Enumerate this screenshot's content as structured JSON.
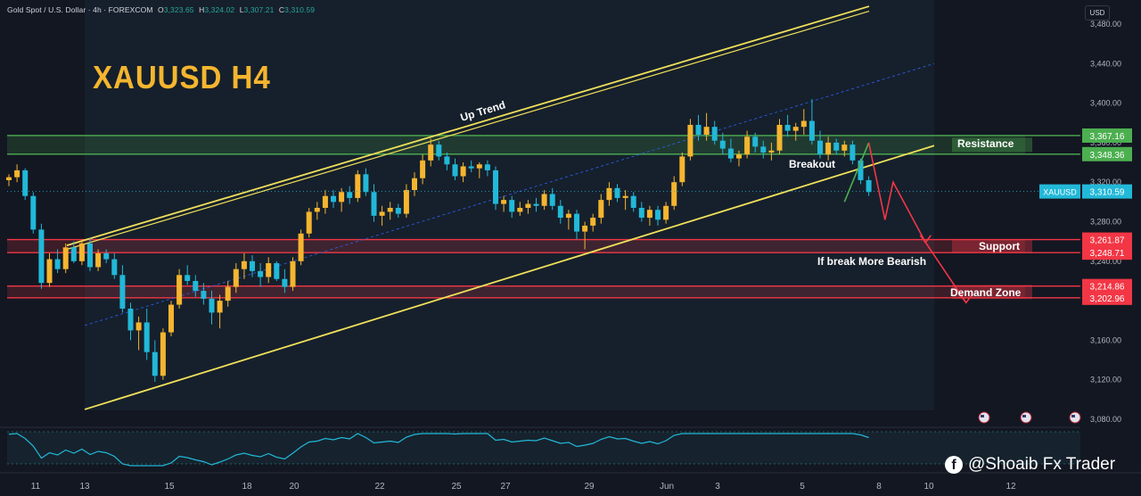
{
  "header": {
    "symbol_desc": "Gold Spot / U.S. Dollar · 4h · FOREXCOM",
    "o_label": "O",
    "o_value": "3,323.65",
    "h_label": "H",
    "h_value": "3,324.02",
    "l_label": "L",
    "l_value": "3,307.21",
    "c_label": "C",
    "c_value": "3,310.59"
  },
  "currency_button": "USD",
  "watermark": "@Shoaib Fx Trader",
  "watermark_icon": "facebook-icon",
  "colors": {
    "background": "#131722",
    "bull": "#f5b52f",
    "bear": "#22b8d8",
    "channel": "#f0e05a",
    "resistance": "#4caf50",
    "support": "#f23645",
    "projection_up": "#4caf50",
    "projection_down": "#f23645",
    "title": "#f5b52f"
  },
  "chart_data": {
    "type": "candlestick",
    "title": "XAUUSD H4",
    "ylim": [
      3080,
      3480
    ],
    "y_ticks": [
      "3,480.00",
      "3,440.00",
      "3,400.00",
      "3,360.00",
      "3,320.00",
      "3,280.00",
      "3,240.00",
      "3,200.00",
      "3,160.00",
      "3,120.00",
      "3,080.00"
    ],
    "x_ticks": [
      "11",
      "13",
      "15",
      "18",
      "20",
      "22",
      "25",
      "27",
      "29",
      "Jun",
      "3",
      "5",
      "8",
      "10",
      "12"
    ],
    "current_price": {
      "label": "XAUUSD",
      "value": 3310.59
    },
    "price_labels": [
      {
        "value": 3367.16,
        "text": "3,367.16",
        "color": "#4caf50"
      },
      {
        "value": 3348.36,
        "text": "3,348.36",
        "color": "#4caf50"
      },
      {
        "value": 3261.87,
        "text": "3,261.87",
        "color": "#f23645"
      },
      {
        "value": 3248.71,
        "text": "3,248.71",
        "color": "#f23645"
      },
      {
        "value": 3214.86,
        "text": "3,214.86",
        "color": "#f23645"
      },
      {
        "value": 3202.96,
        "text": "3,202.96",
        "color": "#f23645"
      }
    ],
    "zones": [
      {
        "name": "Resistance",
        "from": 3348.36,
        "to": 3367.16,
        "color": "#4caf50"
      },
      {
        "name": "Support",
        "from": 3248.71,
        "to": 3261.87,
        "color": "#f23645"
      },
      {
        "name": "Demand Zone",
        "from": 3202.96,
        "to": 3214.86,
        "color": "#f23645"
      }
    ],
    "annotations": [
      "Up Trend",
      "Breakout",
      "Resistance",
      "Support",
      "If break More Bearish",
      "Demand Zone"
    ],
    "candles": [
      [
        3322,
        3328,
        3316,
        3325
      ],
      [
        3325,
        3338,
        3320,
        3332
      ],
      [
        3332,
        3334,
        3302,
        3306
      ],
      [
        3306,
        3310,
        3268,
        3272
      ],
      [
        3272,
        3278,
        3212,
        3218
      ],
      [
        3218,
        3248,
        3214,
        3242
      ],
      [
        3242,
        3252,
        3228,
        3232
      ],
      [
        3232,
        3258,
        3228,
        3254
      ],
      [
        3254,
        3260,
        3238,
        3240
      ],
      [
        3240,
        3262,
        3236,
        3258
      ],
      [
        3258,
        3264,
        3230,
        3234
      ],
      [
        3234,
        3252,
        3230,
        3248
      ],
      [
        3248,
        3252,
        3238,
        3242
      ],
      [
        3242,
        3248,
        3222,
        3226
      ],
      [
        3226,
        3236,
        3188,
        3192
      ],
      [
        3192,
        3198,
        3160,
        3170
      ],
      [
        3170,
        3184,
        3150,
        3178
      ],
      [
        3178,
        3192,
        3140,
        3148
      ],
      [
        3148,
        3160,
        3118,
        3124
      ],
      [
        3124,
        3172,
        3120,
        3168
      ],
      [
        3168,
        3200,
        3164,
        3196
      ],
      [
        3196,
        3232,
        3192,
        3226
      ],
      [
        3226,
        3236,
        3216,
        3220
      ],
      [
        3220,
        3226,
        3204,
        3210
      ],
      [
        3210,
        3218,
        3196,
        3202
      ],
      [
        3202,
        3210,
        3176,
        3188
      ],
      [
        3188,
        3206,
        3172,
        3200
      ],
      [
        3200,
        3220,
        3194,
        3214
      ],
      [
        3214,
        3238,
        3208,
        3232
      ],
      [
        3232,
        3248,
        3222,
        3240
      ],
      [
        3240,
        3246,
        3224,
        3230
      ],
      [
        3230,
        3238,
        3214,
        3224
      ],
      [
        3224,
        3244,
        3218,
        3238
      ],
      [
        3238,
        3240,
        3220,
        3222
      ],
      [
        3222,
        3232,
        3208,
        3214
      ],
      [
        3214,
        3244,
        3210,
        3240
      ],
      [
        3240,
        3272,
        3236,
        3268
      ],
      [
        3268,
        3294,
        3264,
        3290
      ],
      [
        3290,
        3300,
        3282,
        3294
      ],
      [
        3294,
        3312,
        3288,
        3306
      ],
      [
        3306,
        3312,
        3294,
        3300
      ],
      [
        3300,
        3314,
        3290,
        3310
      ],
      [
        3310,
        3316,
        3298,
        3304
      ],
      [
        3304,
        3332,
        3300,
        3328
      ],
      [
        3328,
        3334,
        3306,
        3310
      ],
      [
        3310,
        3318,
        3280,
        3286
      ],
      [
        3286,
        3296,
        3276,
        3290
      ],
      [
        3290,
        3300,
        3282,
        3294
      ],
      [
        3294,
        3298,
        3284,
        3288
      ],
      [
        3288,
        3318,
        3284,
        3312
      ],
      [
        3312,
        3330,
        3306,
        3324
      ],
      [
        3324,
        3348,
        3318,
        3342
      ],
      [
        3342,
        3364,
        3336,
        3358
      ],
      [
        3358,
        3362,
        3342,
        3346
      ],
      [
        3346,
        3350,
        3332,
        3338
      ],
      [
        3338,
        3344,
        3322,
        3326
      ],
      [
        3326,
        3340,
        3320,
        3336
      ],
      [
        3336,
        3342,
        3330,
        3334
      ],
      [
        3334,
        3340,
        3324,
        3338
      ],
      [
        3338,
        3342,
        3326,
        3332
      ],
      [
        3332,
        3336,
        3292,
        3298
      ],
      [
        3298,
        3306,
        3290,
        3302
      ],
      [
        3302,
        3306,
        3284,
        3290
      ],
      [
        3290,
        3300,
        3286,
        3294
      ],
      [
        3294,
        3302,
        3288,
        3298
      ],
      [
        3298,
        3304,
        3290,
        3296
      ],
      [
        3296,
        3312,
        3292,
        3308
      ],
      [
        3308,
        3314,
        3292,
        3296
      ],
      [
        3296,
        3302,
        3278,
        3284
      ],
      [
        3284,
        3292,
        3272,
        3288
      ],
      [
        3288,
        3292,
        3262,
        3270
      ],
      [
        3270,
        3280,
        3252,
        3276
      ],
      [
        3276,
        3288,
        3270,
        3284
      ],
      [
        3284,
        3308,
        3278,
        3302
      ],
      [
        3302,
        3320,
        3296,
        3314
      ],
      [
        3314,
        3318,
        3300,
        3304
      ],
      [
        3304,
        3312,
        3292,
        3306
      ],
      [
        3306,
        3310,
        3290,
        3294
      ],
      [
        3294,
        3300,
        3280,
        3284
      ],
      [
        3284,
        3296,
        3276,
        3292
      ],
      [
        3292,
        3296,
        3276,
        3282
      ],
      [
        3282,
        3300,
        3278,
        3296
      ],
      [
        3296,
        3326,
        3292,
        3320
      ],
      [
        3320,
        3350,
        3316,
        3346
      ],
      [
        3346,
        3384,
        3342,
        3378
      ],
      [
        3378,
        3388,
        3362,
        3368
      ],
      [
        3368,
        3390,
        3362,
        3376
      ],
      [
        3376,
        3382,
        3358,
        3362
      ],
      [
        3362,
        3370,
        3348,
        3354
      ],
      [
        3354,
        3364,
        3340,
        3344
      ],
      [
        3344,
        3352,
        3336,
        3348
      ],
      [
        3348,
        3372,
        3344,
        3366
      ],
      [
        3366,
        3370,
        3350,
        3356
      ],
      [
        3356,
        3362,
        3344,
        3350
      ],
      [
        3350,
        3360,
        3342,
        3352
      ],
      [
        3352,
        3384,
        3348,
        3378
      ],
      [
        3378,
        3388,
        3366,
        3372
      ],
      [
        3372,
        3380,
        3362,
        3376
      ],
      [
        3376,
        3394,
        3368,
        3382
      ],
      [
        3382,
        3404,
        3358,
        3362
      ],
      [
        3362,
        3372,
        3344,
        3348
      ],
      [
        3348,
        3366,
        3342,
        3360
      ],
      [
        3360,
        3364,
        3348,
        3352
      ],
      [
        3352,
        3362,
        3346,
        3358
      ],
      [
        3358,
        3362,
        3338,
        3342
      ],
      [
        3342,
        3344,
        3318,
        3322
      ],
      [
        3322,
        3326,
        3306,
        3310
      ]
    ],
    "projections": {
      "green": [
        [
          103,
          3300
        ],
        [
          106,
          3360
        ]
      ],
      "red": [
        [
          106,
          3360
        ],
        [
          108,
          3282
        ],
        [
          109,
          3320
        ],
        [
          113,
          3259
        ],
        [
          118,
          3198
        ]
      ]
    }
  }
}
